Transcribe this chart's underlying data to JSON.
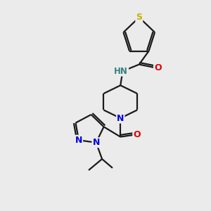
{
  "background_color": "#ebebeb",
  "bond_color": "#1a1a1a",
  "atom_colors": {
    "S": "#c8b000",
    "N": "#0000e0",
    "O": "#e00000",
    "NH": "#3a8080",
    "C": "#1a1a1a"
  },
  "figsize": [
    3.0,
    3.0
  ],
  "dpi": 100,
  "lw": 1.6
}
